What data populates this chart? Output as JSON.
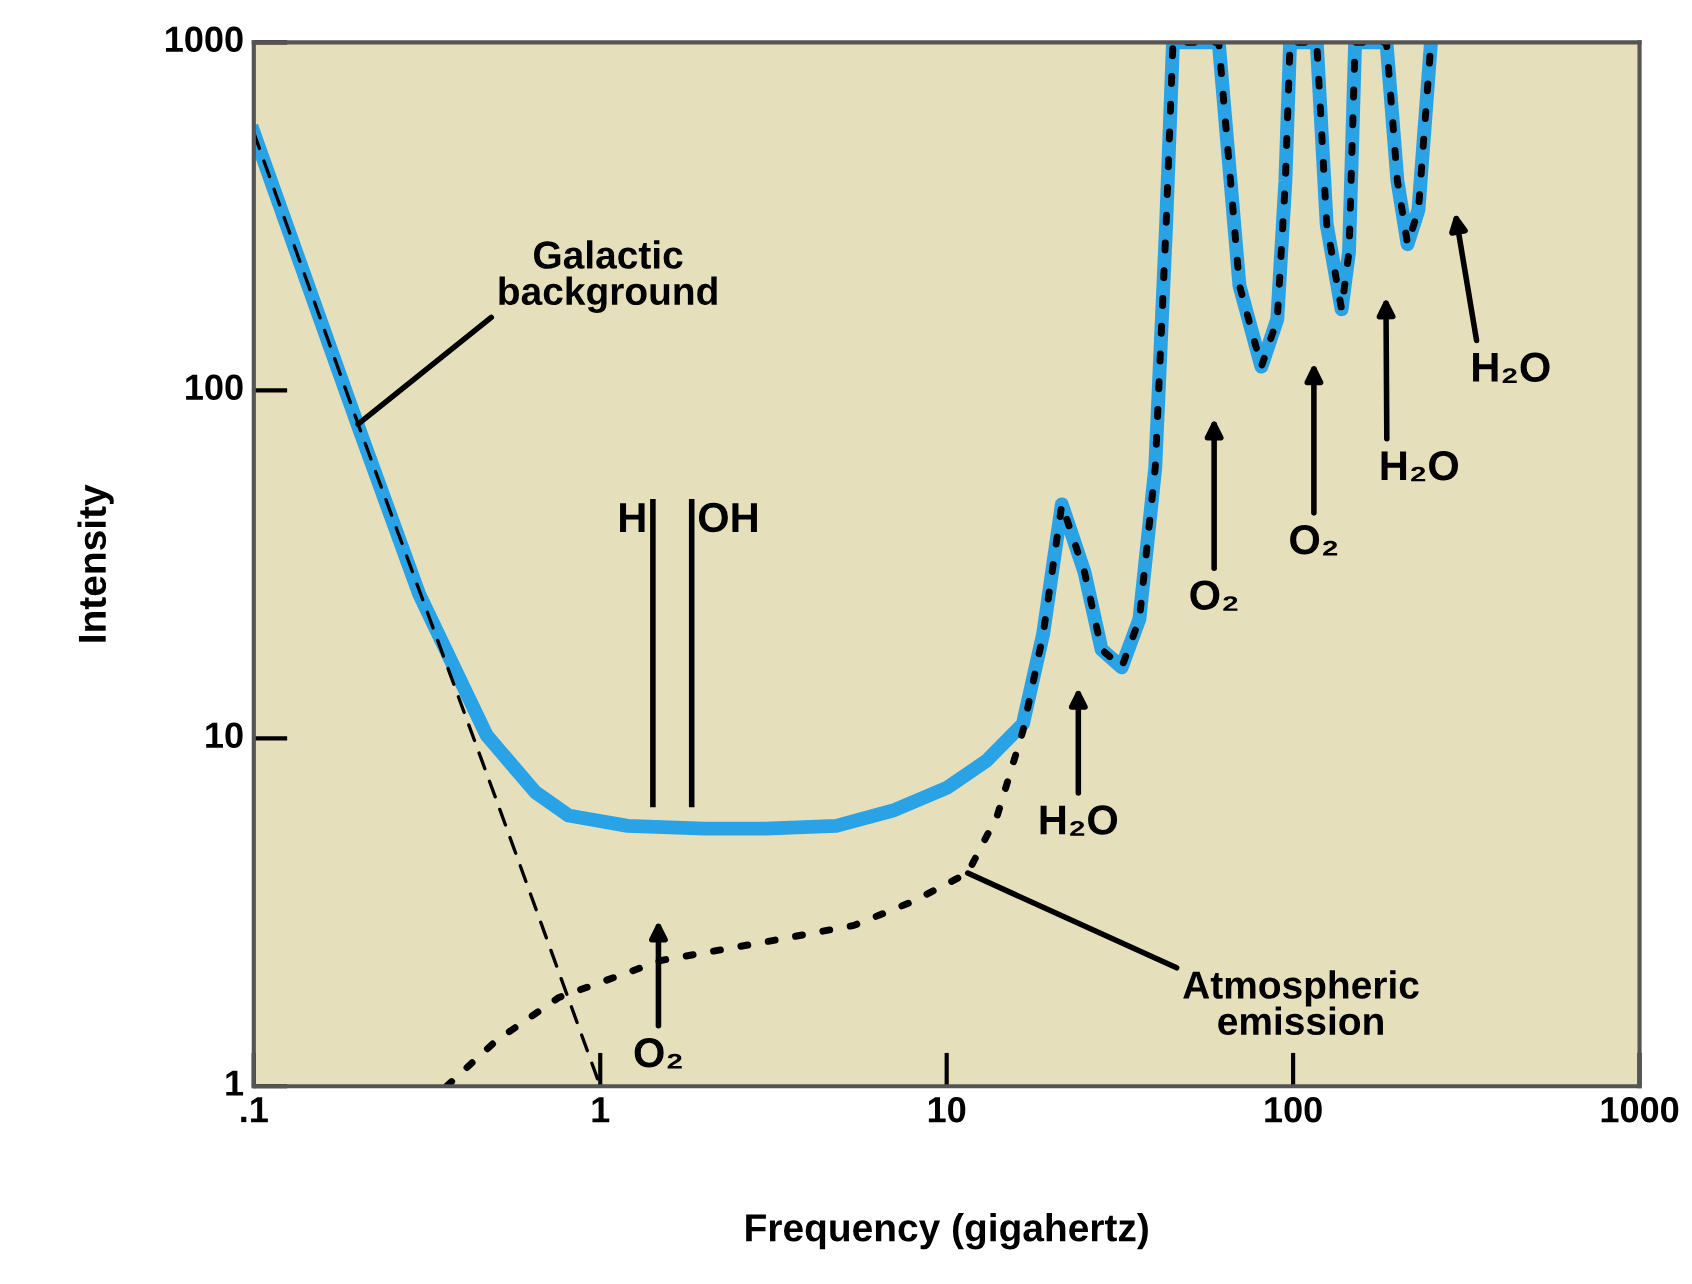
{
  "chart_data": {
    "type": "line",
    "xlabel": "Frequency (gigahertz)",
    "ylabel": "Intensity",
    "log": "xy",
    "xlim": [
      0.1,
      1000
    ],
    "ylim": [
      1,
      1000
    ],
    "xticks": [
      {
        "value": 0.1,
        "label": ".1"
      },
      1,
      10,
      100,
      1000
    ],
    "yticks": [
      1,
      10,
      100,
      1000
    ],
    "grid": false,
    "legend": false,
    "marker": "none",
    "series": [
      {
        "color": "#2aa3e6",
        "line_style": "solid",
        "x": [
          0.1,
          0.2,
          0.3,
          0.47,
          0.65,
          0.81,
          1.2,
          2,
          3,
          4.8,
          7,
          10,
          13,
          16.6,
          19,
          21.5,
          25,
          28,
          32,
          36,
          40,
          43,
          45,
          61,
          70,
          81,
          90,
          95,
          98,
          117,
          125,
          138,
          145,
          151,
          186,
          200,
          214,
          230,
          250
        ],
        "values": [
          550,
          79,
          26,
          10.2,
          7,
          6,
          5.6,
          5.5,
          5.5,
          5.6,
          6.2,
          7.2,
          8.6,
          11,
          20,
          47,
          30,
          18,
          16,
          22,
          60,
          300,
          1000,
          1000,
          200,
          117,
          160,
          400,
          1000,
          1000,
          300,
          171,
          250,
          1000,
          1000,
          400,
          263,
          330,
          1000
        ]
      },
      {
        "color": "#000000",
        "line_style": "dashed",
        "x": [
          0.1,
          0.2,
          0.5,
          1
        ],
        "values": [
          550,
          80,
          6.7,
          1
        ]
      },
      {
        "color": "#000000",
        "line_style": "dotted",
        "x": [
          0.36,
          0.5,
          0.76,
          1.5,
          3,
          5.4,
          8,
          11.5,
          14,
          16.6,
          19,
          21.5,
          25,
          28,
          32,
          36,
          40,
          43,
          45,
          61,
          70,
          81,
          90,
          95,
          98,
          117,
          125,
          138,
          145,
          151,
          186,
          200,
          214,
          230,
          250
        ],
        "values": [
          1,
          1.35,
          1.8,
          2.3,
          2.6,
          2.9,
          3.4,
          4.1,
          6,
          10.5,
          20,
          47,
          30,
          18,
          16,
          22,
          60,
          300,
          1000,
          1000,
          200,
          117,
          160,
          400,
          1000,
          1000,
          300,
          171,
          250,
          1000,
          1000,
          400,
          263,
          330,
          1000
        ]
      }
    ],
    "annotations": [
      {
        "text": "Galactic\nbackground",
        "x": 0.2,
        "y": 80
      },
      {
        "text": "Atmospheric\nemission",
        "x": 11.5,
        "y": 4.1
      },
      "H",
      "OH",
      "O₂",
      "H₂O",
      "O₂",
      "O₂",
      "H₂O",
      "H₂O"
    ]
  }
}
